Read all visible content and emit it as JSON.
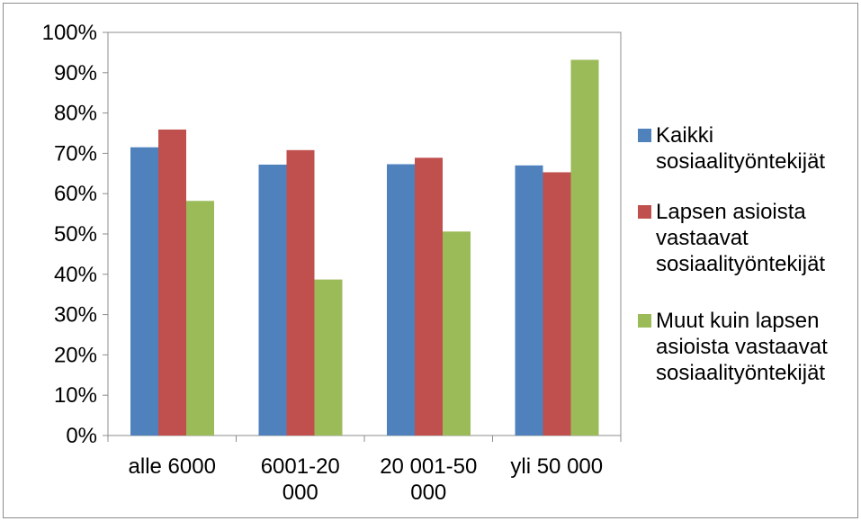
{
  "chart_data": {
    "type": "bar",
    "categories": [
      [
        "alle 6000"
      ],
      [
        "6001-20",
        "000"
      ],
      [
        "20 001-50",
        "000"
      ],
      [
        "yli 50 000"
      ]
    ],
    "series": [
      {
        "name": [
          "Kaikki",
          "sosiaalityöntekijät"
        ],
        "color": "#4F81BD",
        "values": [
          71.5,
          67.2,
          67.3,
          67.0
        ]
      },
      {
        "name": [
          "Lapsen asioista",
          "vastaavat",
          "sosiaalityöntekijät"
        ],
        "color": "#C0504D",
        "values": [
          75.9,
          70.8,
          68.9,
          65.3
        ]
      },
      {
        "name": [
          "Muut kuin lapsen",
          "asioista vastaavat",
          "sosiaalityöntekijät"
        ],
        "color": "#9BBB59",
        "values": [
          58.2,
          38.7,
          50.6,
          93.2
        ]
      }
    ],
    "y_ticks": [
      "0%",
      "10%",
      "20%",
      "30%",
      "40%",
      "50%",
      "60%",
      "70%",
      "80%",
      "90%",
      "100%"
    ],
    "ylim": [
      0,
      100
    ],
    "grid": false,
    "legend_position": "right",
    "title": "",
    "xlabel": "",
    "ylabel": ""
  }
}
